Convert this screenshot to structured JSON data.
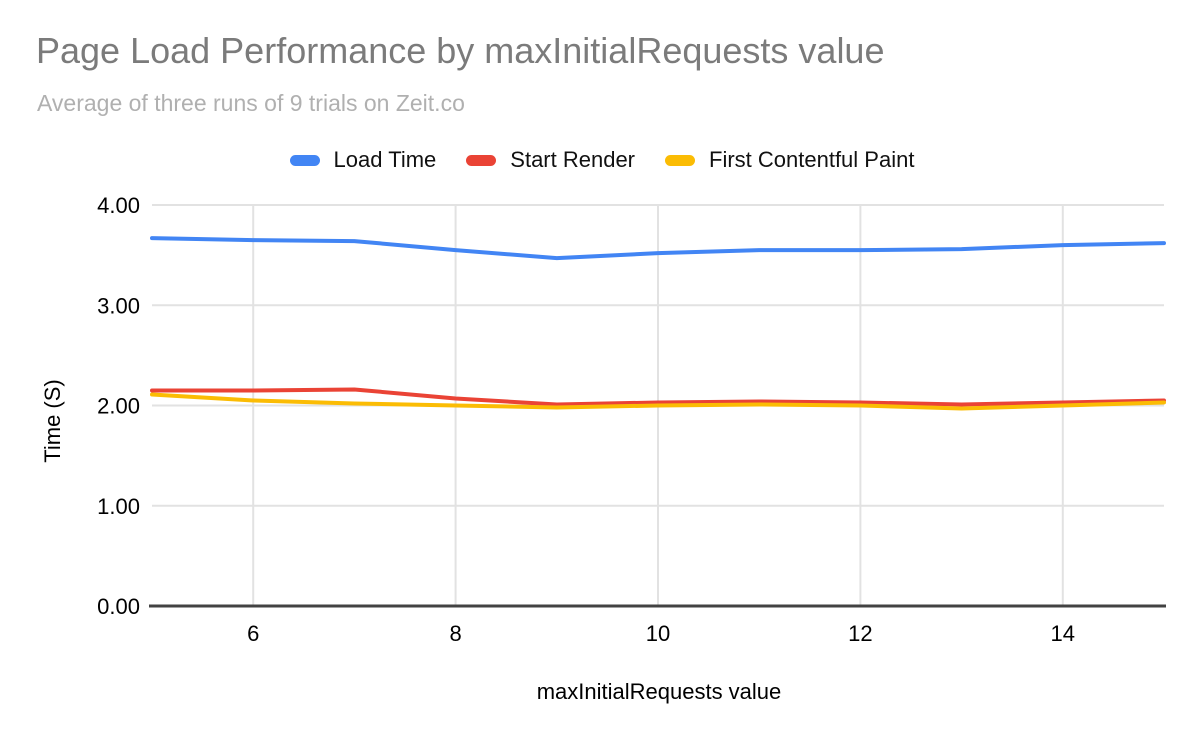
{
  "title": "Page Load Performance by maxInitialRequests value",
  "subtitle": "Average of three runs of 9 trials on Zeit.co",
  "colors": {
    "title_text": "#7b7b7b",
    "subtitle_text": "#b0b0b0",
    "gridline": "#e2e2e2",
    "zero_axis_line": "#424242",
    "tick_text": "#000000",
    "series_blue": "#4285F4",
    "series_red": "#EA4335",
    "series_yellow": "#FBBC04"
  },
  "chart_data": {
    "type": "line",
    "x": [
      5,
      6,
      7,
      8,
      9,
      10,
      11,
      12,
      13,
      14,
      15
    ],
    "series": [
      {
        "name": "Load Time",
        "color": "#4285F4",
        "values": [
          3.67,
          3.65,
          3.64,
          3.55,
          3.47,
          3.52,
          3.55,
          3.55,
          3.56,
          3.6,
          3.62
        ]
      },
      {
        "name": "Start Render",
        "color": "#EA4335",
        "values": [
          2.15,
          2.15,
          2.16,
          2.07,
          2.01,
          2.03,
          2.04,
          2.03,
          2.01,
          2.03,
          2.05
        ]
      },
      {
        "name": "First Contentful Paint",
        "color": "#FBBC04",
        "values": [
          2.11,
          2.05,
          2.02,
          2.0,
          1.98,
          2.0,
          2.01,
          2.0,
          1.97,
          2.0,
          2.03
        ]
      }
    ],
    "title": "Page Load Performance by maxInitialRequests value",
    "subtitle": "Average of three runs of 9 trials on Zeit.co",
    "xlabel": "maxInitialRequests value",
    "ylabel": "Time (S)",
    "xlim": [
      5,
      15
    ],
    "ylim": [
      0,
      4
    ],
    "x_ticks": [
      6,
      8,
      10,
      12,
      14
    ],
    "y_ticks": [
      {
        "value": 0,
        "label": "0.00"
      },
      {
        "value": 1,
        "label": "1.00"
      },
      {
        "value": 2,
        "label": "2.00"
      },
      {
        "value": 3,
        "label": "3.00"
      },
      {
        "value": 4,
        "label": "4.00"
      }
    ],
    "grid": true,
    "legend_position": "top"
  }
}
